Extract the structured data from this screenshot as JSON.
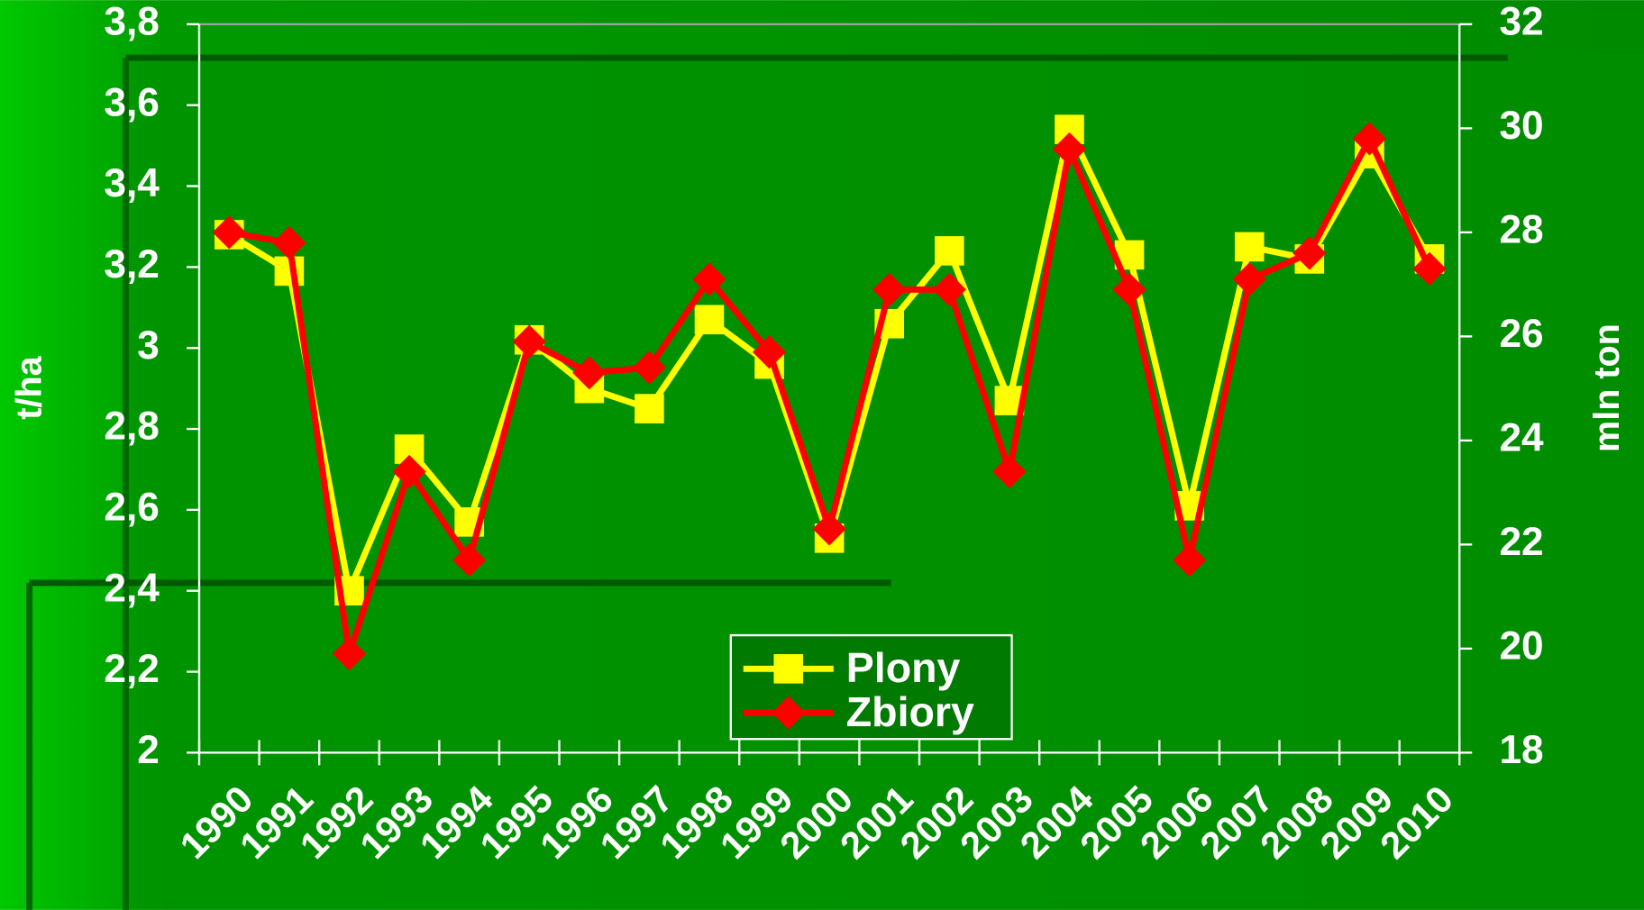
{
  "chart_data": {
    "type": "line",
    "ylabel": "t/ha",
    "y2label": "mln ton",
    "categories": [
      "1990",
      "1991",
      "1992",
      "1993",
      "1994",
      "1995",
      "1996",
      "1997",
      "1998",
      "1999",
      "2000",
      "2001",
      "2002",
      "2003",
      "2004",
      "2005",
      "2006",
      "2007",
      "2008",
      "2009",
      "2010"
    ],
    "series": [
      {
        "name": "Plony",
        "color": "#ffff00",
        "marker": "square",
        "values": [
          3.28,
          3.19,
          2.4,
          2.75,
          2.57,
          3.02,
          2.9,
          2.85,
          3.07,
          2.96,
          2.53,
          3.06,
          3.24,
          2.87,
          3.54,
          3.23,
          2.61,
          3.25,
          3.22,
          3.48,
          3.22
        ]
      },
      {
        "name": "Zbiory",
        "color": "#ff0000",
        "marker": "diamond",
        "axis": "y2",
        "values": [
          28.0,
          27.8,
          19.9,
          23.4,
          21.7,
          25.9,
          25.3,
          25.4,
          27.1,
          25.7,
          22.3,
          26.9,
          26.9,
          23.4,
          29.6,
          26.9,
          21.7,
          27.1,
          27.6,
          29.8,
          27.3
        ]
      }
    ],
    "ylim": [
      2,
      3.8
    ],
    "yticks": [
      2,
      {
        "value": 2.2,
        "label": "2,2"
      },
      {
        "value": 2.4,
        "label": "2,4"
      },
      {
        "value": 2.6,
        "label": "2,6"
      },
      {
        "value": 2.8,
        "label": "2,8"
      },
      3,
      {
        "value": 3.2,
        "label": "3,2"
      },
      {
        "value": 3.4,
        "label": "3,4"
      },
      {
        "value": 3.6,
        "label": "3,6"
      },
      {
        "value": 3.8,
        "label": "3,8"
      }
    ],
    "y2lim": [
      18,
      32
    ],
    "y2ticks": [
      18,
      20,
      22,
      24,
      26,
      28,
      30,
      32
    ]
  }
}
